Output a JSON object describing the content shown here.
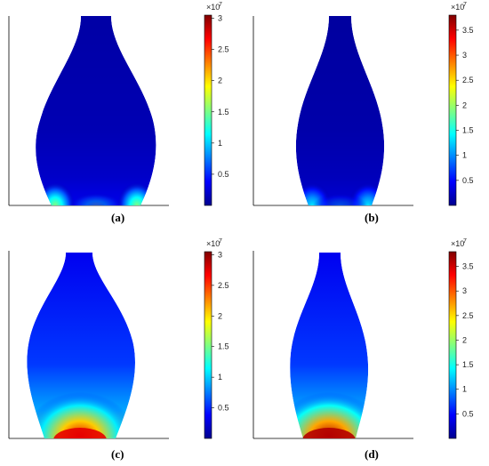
{
  "colormap": [
    "#00008f",
    "#0000ff",
    "#0080ff",
    "#00ffff",
    "#80ff80",
    "#ffff00",
    "#ff8000",
    "#ff0000",
    "#800000"
  ],
  "chart_data": [
    {
      "type": "heatmap",
      "caption": "(a)",
      "colorbar": {
        "min": 0,
        "max": 3.05,
        "ticks": [
          "0.5",
          "1",
          "1.5",
          "2",
          "2.5",
          "3"
        ],
        "tick_values": [
          0.5,
          1,
          1.5,
          2,
          2.5,
          3
        ],
        "multiplier": "×10",
        "exponent": "7"
      },
      "hotspot": "bottom-corners",
      "peak_fraction": 0.5,
      "background_fraction": 0.04
    },
    {
      "type": "heatmap",
      "caption": "(b)",
      "colorbar": {
        "min": 0,
        "max": 3.8,
        "ticks": [
          "0.5",
          "1",
          "1.5",
          "2",
          "2.5",
          "3",
          "3.5"
        ],
        "tick_values": [
          0.5,
          1,
          1.5,
          2,
          2.5,
          3,
          3.5
        ],
        "multiplier": "×10",
        "exponent": "7"
      },
      "hotspot": "bottom-corners",
      "peak_fraction": 0.35,
      "background_fraction": 0.03
    },
    {
      "type": "heatmap",
      "caption": "(c)",
      "colorbar": {
        "min": 0,
        "max": 3.05,
        "ticks": [
          "0.5",
          "1",
          "1.5",
          "2",
          "2.5",
          "3"
        ],
        "tick_values": [
          0.5,
          1,
          1.5,
          2,
          2.5,
          3
        ],
        "multiplier": "×10",
        "exponent": "7"
      },
      "hotspot": "bottom-center",
      "peak_fraction": 0.9,
      "background_fraction": 0.18
    },
    {
      "type": "heatmap",
      "caption": "(d)",
      "colorbar": {
        "min": 0,
        "max": 3.8,
        "ticks": [
          "0.5",
          "1",
          "1.5",
          "2",
          "2.5",
          "3",
          "3.5"
        ],
        "tick_values": [
          0.5,
          1,
          1.5,
          2,
          2.5,
          3,
          3.5
        ],
        "multiplier": "×10",
        "exponent": "7"
      },
      "hotspot": "bottom-center",
      "peak_fraction": 0.95,
      "background_fraction": 0.18
    }
  ]
}
